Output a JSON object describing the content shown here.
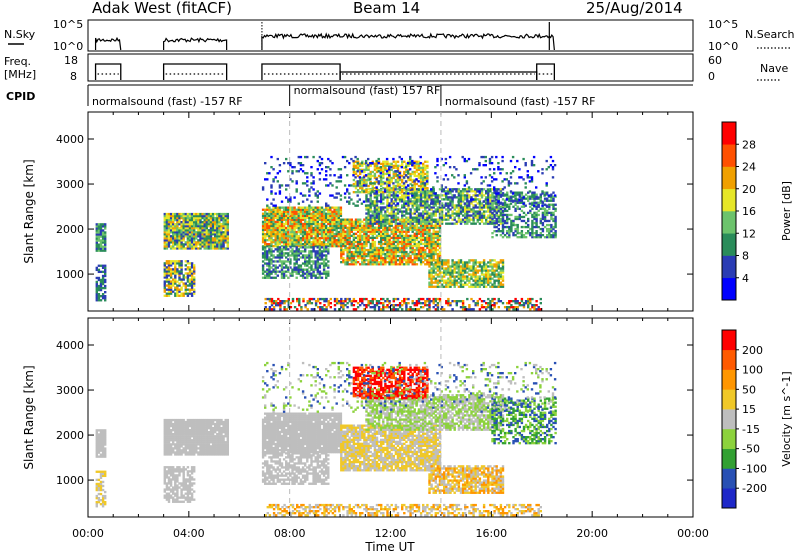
{
  "header": {
    "station": "Adak West (fitACF)",
    "beam": "Beam 14",
    "date": "25/Aug/2014"
  },
  "summary_labels": {
    "nsky": "N.Sky",
    "nsky_tick_hi": "10^5",
    "nsky_tick_lo": "10^0",
    "nsearch": "N.Search",
    "freq_line1": "Freq.",
    "freq_line2": "[MHz]",
    "freq_tick_hi": "18",
    "freq_tick_lo": "8",
    "nave": "Nave",
    "nave_tick_hi": "60",
    "nave_tick_lo": "0",
    "cpid": "CPID"
  },
  "cpid_segments": [
    {
      "label": "normalsound (fast) -157 RF",
      "start_hour": 0.0
    },
    {
      "label": "normalsound (fast) 157 RF",
      "start_hour": 8.0
    },
    {
      "label": "normalsound (fast) -157 RF",
      "start_hour": 14.0
    }
  ],
  "colors": {
    "power": [
      "#0000ff",
      "#2a3cb4",
      "#2a8c5a",
      "#6cc36c",
      "#e6e628",
      "#f0a000",
      "#ff5000",
      "#ff0000"
    ],
    "velocity": [
      "#ff0000",
      "#ff5a00",
      "#ff9600",
      "#f0c828",
      "#bebebe",
      "#8cd23c",
      "#32a032",
      "#2850b4",
      "#1e28c8"
    ]
  },
  "chart_data": [
    {
      "type": "heatmap",
      "name": "Power",
      "xlabel": "",
      "ylabel": "Slant Range [km]",
      "xlim_hours": [
        0,
        24
      ],
      "ylim_km": [
        180,
        4600
      ],
      "yticks": [
        "1000",
        "2000",
        "3000",
        "4000"
      ],
      "colorbar": {
        "title": "Power [dB]",
        "ticks": [
          "4",
          "8",
          "12",
          "16",
          "20",
          "24",
          "28"
        ]
      }
    },
    {
      "type": "heatmap",
      "name": "Velocity",
      "xlabel": "Time UT",
      "ylabel": "Slant Range [km]",
      "xlim_hours": [
        0,
        24
      ],
      "ylim_km": [
        180,
        4600
      ],
      "yticks": [
        "1000",
        "2000",
        "3000",
        "4000"
      ],
      "xticks": [
        "00:00",
        "04:00",
        "08:00",
        "12:00",
        "16:00",
        "20:00",
        "00:00"
      ],
      "colorbar": {
        "title": "Velocity [m s^-1]",
        "ticks": [
          "200",
          "100",
          "50",
          "15",
          "-15",
          "-50",
          "-100",
          "-200"
        ]
      }
    }
  ]
}
